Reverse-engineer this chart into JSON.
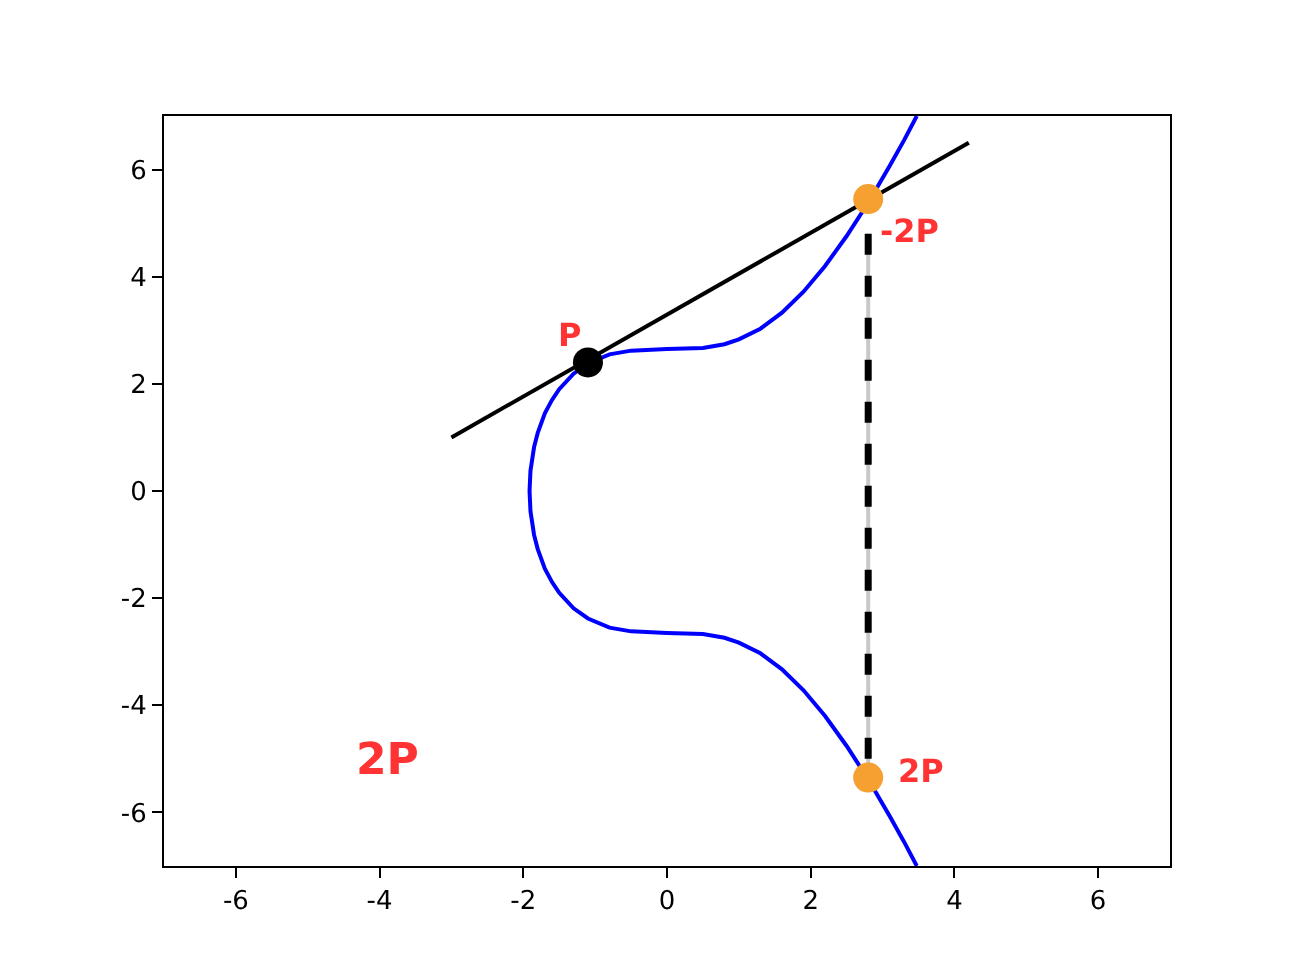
{
  "chart_data": {
    "type": "line",
    "xlim": [
      -7,
      7
    ],
    "ylim": [
      -7,
      7
    ],
    "xticks": [
      -6,
      -4,
      -2,
      0,
      2,
      4,
      6
    ],
    "yticks": [
      -6,
      -4,
      -2,
      0,
      2,
      4,
      6
    ],
    "grid": false,
    "series": [
      {
        "color": "#0000ff",
        "line_style": "solid",
        "marker": "none",
        "x": [
          3.476,
          3.3,
          3.1,
          2.8,
          2.5,
          2.2,
          1.9,
          1.6,
          1.3,
          1.0,
          0.8,
          0.5,
          0,
          -0.5,
          -0.8,
          -1.1,
          -1.3,
          -1.5,
          -1.6,
          -1.7,
          -1.8,
          -1.85,
          -1.9,
          -1.913,
          -1.9,
          -1.85,
          -1.8,
          -1.7,
          -1.6,
          -1.5,
          -1.3,
          -1.1,
          -0.8,
          -0.5,
          0,
          0.5,
          0.8,
          1.0,
          1.3,
          1.6,
          1.9,
          2.2,
          2.5,
          2.8,
          3.1,
          3.3,
          3.476
        ],
        "values": [
          -7.0,
          -6.55,
          -6.07,
          -5.38,
          -4.76,
          -4.2,
          -3.72,
          -3.33,
          -3.03,
          -2.83,
          -2.74,
          -2.67,
          -2.65,
          -2.62,
          -2.55,
          -2.38,
          -2.19,
          -1.9,
          -1.7,
          -1.45,
          -1.08,
          -0.82,
          -0.38,
          0,
          0.38,
          0.82,
          1.08,
          1.45,
          1.7,
          1.9,
          2.19,
          2.38,
          2.55,
          2.62,
          2.65,
          2.67,
          2.74,
          2.83,
          3.03,
          3.33,
          3.72,
          4.2,
          4.76,
          5.38,
          6.07,
          6.55,
          7.0
        ]
      },
      {
        "color": "#000000",
        "line_style": "solid",
        "marker": "none",
        "x": [
          -3,
          4.2
        ],
        "values": [
          1.0,
          6.5
        ]
      },
      {
        "color": "#c8c8c8",
        "line_style": "solid",
        "marker": "none",
        "x": [
          2.8,
          2.8
        ],
        "values": [
          4.8,
          -5.1
        ]
      },
      {
        "color": "#000000",
        "line_style": "dashed",
        "marker": "none",
        "x": [
          2.8,
          2.8
        ],
        "values": [
          4.8,
          -5.1
        ]
      },
      {
        "type": "scatter",
        "color": "#000000",
        "marker": "circle",
        "x": [
          -1.1
        ],
        "values": [
          2.4
        ]
      },
      {
        "type": "scatter",
        "color": "#f5a030",
        "marker": "circle",
        "x": [
          2.8
        ],
        "values": [
          5.45
        ]
      },
      {
        "type": "scatter",
        "color": "#f5a030",
        "marker": "circle",
        "x": [
          2.8
        ],
        "values": [
          -5.35
        ]
      }
    ],
    "annotations": [
      "P",
      "-2P",
      "2P",
      "2P"
    ]
  }
}
